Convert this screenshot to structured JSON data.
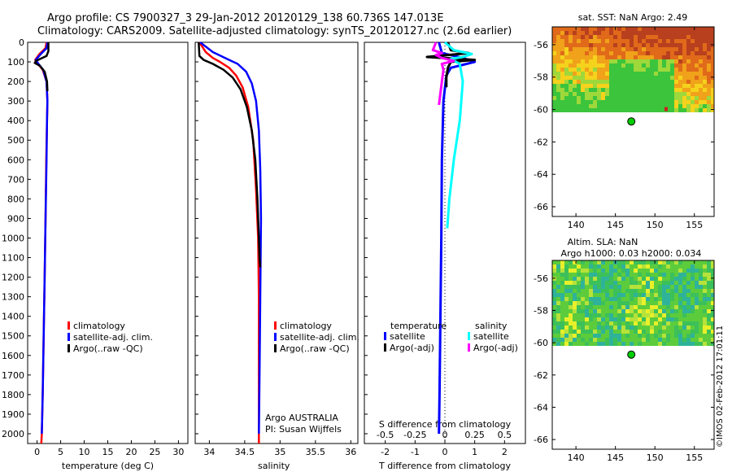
{
  "title_line1": "Argo profile: CS 7900327_3 29-Jan-2012 20120129_138 60.736S 147.013E",
  "title_line2": "Climatology: CARS2009. Satellite-adjusted climatology: synTS_20120127.nc (2.6d earlier)",
  "colors": {
    "climatology": "#ff0000",
    "satellite": "#0000ff",
    "argo": "#000000",
    "sal_satellite": "#00ffff",
    "sal_argo": "#ff00ff",
    "marker": "#00cc00"
  },
  "chart_data": [
    {
      "type": "line",
      "panel": "temperature",
      "xlabel": "temperature (deg C)",
      "xlim": [
        -2,
        32
      ],
      "xticks": [
        0,
        5,
        10,
        15,
        20,
        25,
        30
      ],
      "ylim": [
        2050,
        0
      ],
      "yticks": [
        0,
        100,
        200,
        300,
        400,
        500,
        600,
        700,
        800,
        900,
        1000,
        1100,
        1200,
        1300,
        1400,
        1500,
        1600,
        1700,
        1800,
        1900,
        2000
      ],
      "legend": [
        "climatology",
        "satellite-adj. clim.",
        "Argo(..raw -QC)"
      ],
      "series": [
        {
          "name": "climatology",
          "color_key": "climatology",
          "x": [
            2.0,
            1.8,
            0.5,
            -0.4,
            0.2,
            1.2,
            2.0,
            2.2,
            2.1,
            1.95,
            1.8,
            1.6,
            1.4,
            1.2,
            1.0,
            0.9
          ],
          "y": [
            0,
            30,
            60,
            90,
            110,
            140,
            200,
            300,
            400,
            600,
            900,
            1200,
            1500,
            1800,
            2000,
            2050
          ]
        },
        {
          "name": "satellite-adj. clim.",
          "color_key": "satellite",
          "x": [
            2.2,
            2.0,
            0.8,
            -0.3,
            0.3,
            1.3,
            2.0,
            2.2,
            2.1,
            2.0,
            1.8,
            1.6,
            1.4,
            1.2,
            1.0
          ],
          "y": [
            0,
            30,
            60,
            90,
            110,
            140,
            200,
            300,
            400,
            600,
            900,
            1200,
            1500,
            1800,
            2000
          ]
        },
        {
          "name": "Argo(..raw -QC)",
          "color_key": "argo",
          "x": [
            2.4,
            2.4,
            2.0,
            -0.2,
            -0.5,
            0.6,
            1.6,
            2.1,
            2.2
          ],
          "y": [
            0,
            45,
            70,
            95,
            105,
            120,
            150,
            200,
            250
          ]
        }
      ]
    },
    {
      "type": "line",
      "panel": "salinity",
      "xlabel": "salinity",
      "xlim": [
        33.8,
        36.1
      ],
      "xticks": [
        34,
        34.5,
        35,
        35.5,
        36
      ],
      "ylim": [
        2050,
        0
      ],
      "legend": [
        "climatology",
        "satellite-adj. clim.",
        "Argo(..raw -QC)"
      ],
      "annotation": [
        "Argo AUSTRALIA",
        "PI: Susan Wijffels"
      ],
      "series": [
        {
          "name": "climatology",
          "color_key": "climatology",
          "x": [
            33.86,
            33.95,
            34.05,
            34.15,
            34.28,
            34.38,
            34.47,
            34.55,
            34.62,
            34.66,
            34.69,
            34.7,
            34.7,
            34.7,
            34.7
          ],
          "y": [
            0,
            50,
            80,
            100,
            130,
            170,
            230,
            330,
            500,
            750,
            1000,
            1300,
            1600,
            1900,
            2050
          ]
        },
        {
          "name": "satellite-adj. clim.",
          "color_key": "satellite",
          "x": [
            33.87,
            34.05,
            34.25,
            34.4,
            34.52,
            34.6,
            34.66,
            34.7,
            34.72,
            34.73,
            34.72,
            34.71,
            34.7
          ],
          "y": [
            0,
            50,
            85,
            110,
            150,
            210,
            300,
            450,
            650,
            900,
            1300,
            1700,
            2000
          ]
        },
        {
          "name": "Argo(..raw -QC)",
          "color_key": "argo",
          "x": [
            33.85,
            33.86,
            33.92,
            34.05,
            34.2,
            34.33,
            34.44,
            34.53,
            34.6,
            34.65,
            34.68,
            34.7,
            34.71,
            34.72
          ],
          "y": [
            0,
            70,
            90,
            110,
            140,
            180,
            240,
            330,
            450,
            600,
            800,
            1000,
            1100,
            1150
          ]
        }
      ]
    },
    {
      "type": "line",
      "panel": "difference",
      "xlabel": "T difference from climatology",
      "x2label": "S difference from climatology",
      "xlim": [
        -2.7,
        2.7
      ],
      "xticks": [
        -2,
        -1,
        0,
        1,
        2
      ],
      "x2ticks": [
        -0.5,
        -0.25,
        0,
        0.25,
        0.5
      ],
      "ylim": [
        2050,
        0
      ],
      "legend_temperature_title": "temperature",
      "legend_salinity_title": "salinity",
      "legend_temperature": [
        "satellite",
        "Argo(-adj)"
      ],
      "legend_salinity": [
        "satellite",
        "Argo(-adj)"
      ],
      "series": [
        {
          "name": "temperature satellite",
          "color_key": "satellite",
          "x": [
            -0.2,
            -0.1,
            0.6,
            1.0,
            0.6,
            0.2,
            0.05,
            -0.05,
            -0.1,
            -0.12,
            -0.15,
            -0.18,
            -0.2
          ],
          "y": [
            0,
            55,
            80,
            100,
            115,
            130,
            170,
            300,
            600,
            1000,
            1400,
            1800,
            2000
          ]
        },
        {
          "name": "temperature Argo(-adj)",
          "color_key": "argo",
          "x": [
            0.1,
            0.2,
            0.8,
            -0.6,
            1.0,
            0.2,
            0.1,
            0.05,
            0.05
          ],
          "y": [
            0,
            40,
            55,
            75,
            90,
            100,
            130,
            180,
            230
          ]
        },
        {
          "name": "salinity satellite",
          "color_key": "sal_satellite",
          "x": [
            0.0,
            0.3,
            0.9,
            0.6,
            0.2,
            0.5,
            0.6,
            0.5,
            0.3,
            0.15,
            0.08
          ],
          "y": [
            0,
            40,
            60,
            75,
            85,
            110,
            200,
            400,
            600,
            800,
            950
          ]
        },
        {
          "name": "salinity Argo(-adj)",
          "color_key": "sal_argo",
          "x": [
            -0.3,
            -0.4,
            -0.1,
            -0.3,
            -0.1,
            0.3,
            -0.1,
            -0.05,
            -0.1,
            -0.15,
            -0.2
          ],
          "y": [
            0,
            40,
            55,
            65,
            80,
            95,
            110,
            140,
            200,
            260,
            320
          ]
        }
      ]
    },
    {
      "type": "heatmap",
      "panel": "sst_map",
      "title": "sat. SST: NaN Argo: 2.49",
      "xlim": [
        137,
        157.5
      ],
      "ylim": [
        -66.6,
        -54.9
      ],
      "xticks": [
        140,
        145,
        150,
        155
      ],
      "yticks": [
        -56,
        -58,
        -60,
        -62,
        -64,
        -66
      ],
      "argo_position": [
        147.013,
        -60.736
      ]
    },
    {
      "type": "heatmap",
      "panel": "sla_map",
      "title_line1": "Altim. SLA: NaN",
      "title_line2": "Argo h1000: 0.03 h2000: 0.034",
      "xlim": [
        137,
        157.5
      ],
      "ylim": [
        -66.6,
        -54.9
      ],
      "xticks": [
        140,
        145,
        150,
        155
      ],
      "yticks": [
        -56,
        -58,
        -60,
        -62,
        -64,
        -66
      ],
      "argo_position": [
        147.013,
        -60.736
      ]
    }
  ],
  "credit": "©IMOS 02-Feb-2012 17:01:11"
}
